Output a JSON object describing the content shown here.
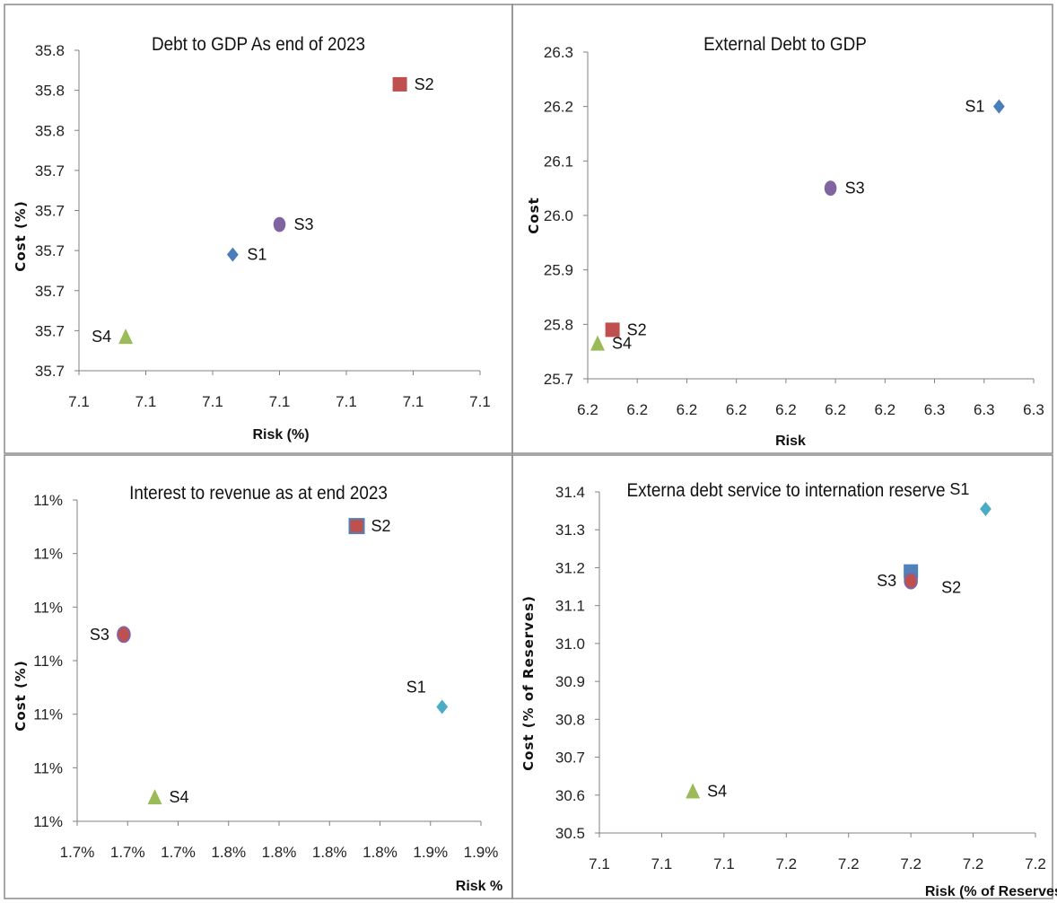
{
  "colors": {
    "s1_blue": "#4a7ebb",
    "s1_cyan": "#4bacc6",
    "s2_red": "#c0504d",
    "s2_outline_blue": "#4f81bd",
    "s3_purple": "#8064a2",
    "s4_green": "#9bbb59",
    "axis": "#808080",
    "border": "#8a8a8a"
  },
  "chart_data": [
    {
      "type": "scatter",
      "title": "Debt to GDP As end of 2023",
      "xlabel": "Risk (%)",
      "ylabel": "Cost (%)",
      "x_tick_labels": [
        "7.1",
        "7.1",
        "7.1",
        "7.1",
        "7.1",
        "7.1",
        "7.1"
      ],
      "y_tick_labels": [
        "35.7",
        "35.7",
        "35.7",
        "35.7",
        "35.7",
        "35.7",
        "35.8",
        "35.8",
        "35.8"
      ],
      "xlim": [
        7.06,
        7.12
      ],
      "ylim": [
        35.66,
        35.82
      ],
      "grid": false,
      "legend": "none",
      "series": [
        {
          "name": "S1",
          "x": 7.083,
          "y": 35.718,
          "marker": "diamond",
          "color": "#4a7ebb",
          "label_side": "right"
        },
        {
          "name": "S2",
          "x": 7.108,
          "y": 35.803,
          "marker": "square",
          "color": "#c0504d",
          "label_side": "right"
        },
        {
          "name": "S3",
          "x": 7.09,
          "y": 35.733,
          "marker": "circle",
          "color": "#8064a2",
          "label_side": "right"
        },
        {
          "name": "S4",
          "x": 7.067,
          "y": 35.677,
          "marker": "triangle",
          "color": "#9bbb59",
          "label_side": "left"
        }
      ]
    },
    {
      "type": "scatter",
      "title": "External Debt to GDP",
      "xlabel": "Risk",
      "ylabel": "Cost",
      "x_tick_labels": [
        "6.2",
        "6.2",
        "6.2",
        "6.2",
        "6.2",
        "6.2",
        "6.2",
        "6.3",
        "6.3",
        "6.3"
      ],
      "y_tick_labels": [
        "25.7",
        "25.8",
        "25.9",
        "26.0",
        "26.1",
        "26.2",
        "26.3"
      ],
      "xlim": [
        6.19,
        6.28
      ],
      "ylim": [
        25.7,
        26.3
      ],
      "grid": false,
      "legend": "none",
      "series": [
        {
          "name": "S1",
          "x": 6.273,
          "y": 26.2,
          "marker": "diamond",
          "color": "#4a7ebb",
          "label_side": "left"
        },
        {
          "name": "S2",
          "x": 6.195,
          "y": 25.79,
          "marker": "square",
          "color": "#c0504d",
          "label_side": "right"
        },
        {
          "name": "S3",
          "x": 6.239,
          "y": 26.05,
          "marker": "circle",
          "color": "#8064a2",
          "label_side": "right"
        },
        {
          "name": "S4",
          "x": 6.192,
          "y": 25.765,
          "marker": "triangle",
          "color": "#9bbb59",
          "label_side": "right"
        }
      ]
    },
    {
      "type": "scatter",
      "title": "Interest to revenue as at end 2023",
      "xlabel": "Risk %",
      "ylabel": "Cost (%)",
      "x_tick_labels": [
        "1.7%",
        "1.7%",
        "1.7%",
        "1.8%",
        "1.8%",
        "1.8%",
        "1.8%",
        "1.9%",
        "1.9%"
      ],
      "y_tick_labels": [
        "11%",
        "11%",
        "11%",
        "11%",
        "11%",
        "11%",
        "11%"
      ],
      "xlim": [
        1.66,
        1.92
      ],
      "ylim": [
        10.6,
        11.4
      ],
      "grid": false,
      "legend": "none",
      "series": [
        {
          "name": "S1",
          "x": 1.895,
          "y": 10.885,
          "marker": "diamond",
          "color": "#4bacc6",
          "label_side": "above-left"
        },
        {
          "name": "S2",
          "x": 1.84,
          "y": 11.335,
          "marker": "square",
          "color": "#c0504d",
          "label_side": "right"
        },
        {
          "name": "S3",
          "x": 1.69,
          "y": 11.065,
          "marker": "circle",
          "color": "#c0504d",
          "label_side": "left"
        },
        {
          "name": "S4",
          "x": 1.71,
          "y": 10.66,
          "marker": "triangle",
          "color": "#9bbb59",
          "label_side": "right"
        }
      ]
    },
    {
      "type": "scatter",
      "title": "Externa debt service to internation reserve",
      "xlabel": "Risk (% of Reserves)",
      "ylabel": "Cost (% of Reserves)",
      "x_tick_labels": [
        "7.1",
        "7.1",
        "7.1",
        "7.2",
        "7.2",
        "7.2",
        "7.2",
        "7.2"
      ],
      "y_tick_labels": [
        "30.5",
        "30.6",
        "30.7",
        "30.8",
        "30.9",
        "31.0",
        "31.1",
        "31.2",
        "31.3",
        "31.4"
      ],
      "xlim": [
        7.09,
        7.23
      ],
      "ylim": [
        30.5,
        31.4
      ],
      "grid": false,
      "legend": "none",
      "series": [
        {
          "name": "S1",
          "x": 7.214,
          "y": 31.355,
          "marker": "diamond",
          "color": "#4bacc6",
          "label_side": "above-left"
        },
        {
          "name": "S2",
          "x": 7.19,
          "y": 31.19,
          "marker": "square",
          "color": "#4f81bd",
          "label_side": "below-right"
        },
        {
          "name": "S3",
          "x": 7.19,
          "y": 31.165,
          "marker": "circle",
          "color": "#c0504d",
          "label_side": "left"
        },
        {
          "name": "S4",
          "x": 7.12,
          "y": 30.61,
          "marker": "triangle",
          "color": "#9bbb59",
          "label_side": "right"
        }
      ]
    }
  ]
}
